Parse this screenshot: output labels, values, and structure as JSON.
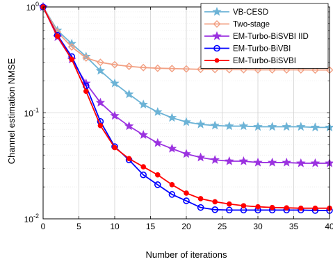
{
  "chart_data": {
    "type": "line",
    "xlabel": "Number of iterations",
    "ylabel": "Channel estimation NMSE",
    "xlim": [
      0,
      40
    ],
    "ylim": [
      0.01,
      1
    ],
    "yscale": "log",
    "grid": true,
    "legend_position": "top-right",
    "x_ticks": [
      "0",
      "5",
      "10",
      "15",
      "20",
      "25",
      "30",
      "35",
      "40"
    ],
    "y_ticks": [
      {
        "base": "10",
        "exp": "0",
        "value": 1
      },
      {
        "base": "10",
        "exp": "-1",
        "value": 0.1
      },
      {
        "base": "10",
        "exp": "-2",
        "value": 0.01
      }
    ],
    "x": [
      0,
      2,
      4,
      6,
      8,
      10,
      12,
      14,
      16,
      18,
      20,
      22,
      24,
      26,
      28,
      30,
      32,
      34,
      36,
      38,
      40
    ],
    "series": [
      {
        "name": "VB-CESD",
        "color": "#6cb3d6",
        "marker": "star",
        "values": [
          1.0,
          0.6,
          0.45,
          0.34,
          0.25,
          0.19,
          0.15,
          0.12,
          0.102,
          0.09,
          0.082,
          0.078,
          0.076,
          0.075,
          0.075,
          0.074,
          0.074,
          0.074,
          0.074,
          0.073,
          0.073
        ]
      },
      {
        "name": "Two-stage",
        "color": "#f2a083",
        "marker": "diamond",
        "values": [
          1.0,
          0.58,
          0.42,
          0.33,
          0.3,
          0.285,
          0.275,
          0.268,
          0.264,
          0.262,
          0.26,
          0.258,
          0.257,
          0.256,
          0.256,
          0.255,
          0.255,
          0.255,
          0.255,
          0.254,
          0.254
        ]
      },
      {
        "name": "EM-Turbo-BiSVBI IID",
        "color": "#9b32e0",
        "marker": "star",
        "values": [
          1.0,
          0.52,
          0.32,
          0.19,
          0.125,
          0.094,
          0.075,
          0.062,
          0.052,
          0.046,
          0.041,
          0.038,
          0.036,
          0.035,
          0.035,
          0.034,
          0.034,
          0.034,
          0.0335,
          0.0335,
          0.0335
        ]
      },
      {
        "name": "EM-Turbo-BiVBI",
        "color": "#0000ff",
        "marker": "circle",
        "values": [
          1.0,
          0.54,
          0.34,
          0.18,
          0.083,
          0.048,
          0.036,
          0.026,
          0.021,
          0.017,
          0.0148,
          0.0128,
          0.0122,
          0.0121,
          0.0121,
          0.0121,
          0.0121,
          0.0121,
          0.0121,
          0.012,
          0.012
        ]
      },
      {
        "name": "EM-Turbo-BiSVBI",
        "color": "#ff0000",
        "marker": "dot",
        "values": [
          1.0,
          0.53,
          0.32,
          0.16,
          0.076,
          0.047,
          0.037,
          0.031,
          0.026,
          0.021,
          0.0175,
          0.0155,
          0.0145,
          0.0138,
          0.0133,
          0.013,
          0.0128,
          0.0127,
          0.0126,
          0.0126,
          0.0126
        ]
      }
    ]
  }
}
